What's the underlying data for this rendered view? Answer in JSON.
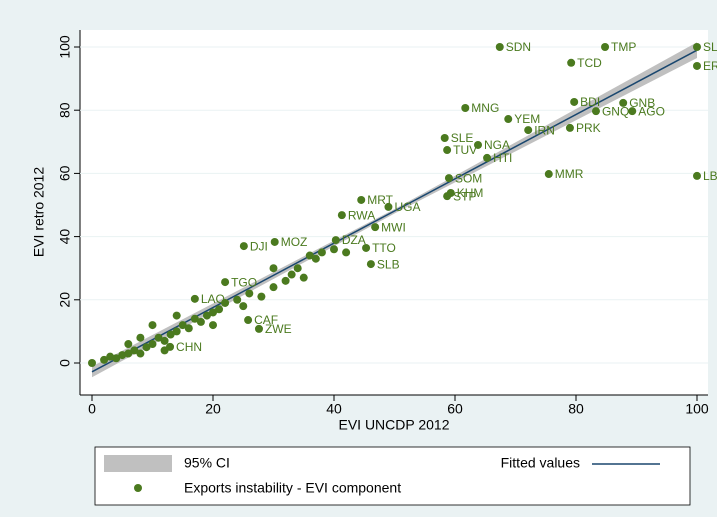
{
  "chart_data": {
    "type": "scatter",
    "x_label": "EVI UNCDP 2012",
    "y_label": "EVI retro 2012",
    "xlim": [
      0,
      100
    ],
    "ylim": [
      0,
      100
    ],
    "xticks": [
      0,
      20,
      40,
      60,
      80,
      100
    ],
    "yticks": [
      0,
      20,
      40,
      60,
      80,
      100
    ],
    "ci": {
      "name": "95% CI",
      "color": "#c0c0c0",
      "x": [
        0,
        50,
        100
      ],
      "lower": [
        -4.5,
        47.3,
        96.5
      ],
      "upper": [
        -1.1,
        48.7,
        101.5
      ]
    },
    "fit": {
      "name": "Fitted values",
      "color": "#1a476f",
      "x": [
        0,
        100
      ],
      "y": [
        -2.8,
        99
      ]
    },
    "series": [
      {
        "name": "Exports instability - EVI component",
        "color": "#4b7a1f",
        "x": [
          67.4,
          84.8,
          100,
          100,
          79.2,
          61.7,
          79.7,
          87.8,
          83.3,
          89.3,
          68.8,
          72.1,
          79,
          58.3,
          58.7,
          63.8,
          65.3,
          59,
          59.3,
          58.7,
          75.5,
          100,
          44.5,
          49,
          41.3,
          46.8,
          40.3,
          45.3,
          46.1,
          25.1,
          30.2,
          22,
          17,
          25.8,
          27.6,
          12.9,
          0,
          2,
          3,
          4,
          5,
          6,
          7,
          8,
          9,
          10,
          11,
          12,
          13,
          14,
          15,
          16,
          17,
          18,
          19,
          20,
          21,
          22,
          24,
          26,
          28,
          30,
          32,
          33,
          34,
          35,
          36,
          37,
          38,
          40,
          42,
          8,
          10,
          14,
          6,
          12,
          20,
          25,
          30
        ],
        "y": [
          100,
          100,
          100,
          94,
          95,
          80.7,
          82.6,
          82.3,
          79.7,
          79.7,
          77.2,
          73.7,
          74.4,
          71.2,
          67.4,
          69,
          64.9,
          58.5,
          53.8,
          52.8,
          59.8,
          59.2,
          51.6,
          49.4,
          46.8,
          43,
          38.9,
          36.4,
          31.3,
          37,
          38.3,
          25.6,
          20.3,
          13.6,
          10.8,
          5.1,
          0,
          1,
          2,
          1.5,
          2.5,
          3,
          4,
          3,
          5,
          6,
          8,
          7,
          9,
          10,
          12,
          11,
          14,
          13,
          15,
          16,
          17,
          19,
          20,
          22,
          21,
          24,
          26,
          28,
          30,
          27,
          34,
          33,
          35,
          36,
          35,
          8,
          12,
          15,
          6,
          4,
          12,
          18,
          30
        ],
        "labels": [
          "SDN",
          "TMP",
          "SL",
          "ER",
          "TCD",
          "MNG",
          "BDI",
          "GNB",
          "GNQ",
          "AGO",
          "YEM",
          "IRN",
          "PRK",
          "SLE",
          "TUV",
          "NGA",
          "HTI",
          "SOM",
          "KHM",
          "STP",
          "MMR",
          "LB",
          "MRT",
          "UGA",
          "RWA",
          "MWI",
          "DZA",
          "TTO",
          "SLB",
          "DJI",
          "MOZ",
          "TGO",
          "LAO",
          "CAF",
          "ZWE",
          "CHN",
          null,
          null,
          null,
          null,
          null,
          null,
          null,
          null,
          null,
          null,
          null,
          null,
          null,
          null,
          null,
          null,
          null,
          null,
          null,
          null,
          null,
          null,
          null,
          null,
          null,
          null,
          null,
          null,
          null,
          null,
          null,
          null,
          null,
          null,
          null,
          null,
          null,
          null,
          null,
          null,
          null,
          null,
          null
        ]
      }
    ]
  }
}
